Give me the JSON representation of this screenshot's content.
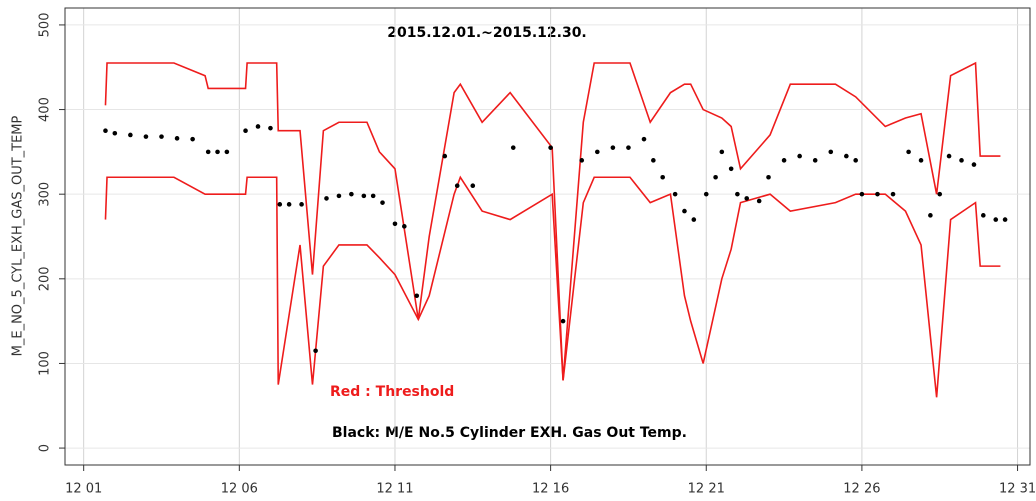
{
  "chart_data": {
    "type": "line",
    "title": "2015.12.01.~2015.12.30.",
    "ylabel": "M_E_NO_5_CYL_EXH_GAS_OUT_TEMP",
    "xlim": [
      0.4,
      31.4
    ],
    "ylim": [
      -20,
      520
    ],
    "xticks": [
      {
        "value": 1,
        "label": "12 01"
      },
      {
        "value": 6,
        "label": "12 06"
      },
      {
        "value": 11,
        "label": "12 11"
      },
      {
        "value": 16,
        "label": "12 16"
      },
      {
        "value": 21,
        "label": "12 21"
      },
      {
        "value": 26,
        "label": "12 26"
      },
      {
        "value": 31,
        "label": "12 31"
      }
    ],
    "yticks": [
      0,
      100,
      200,
      300,
      400,
      500
    ],
    "grid": true,
    "series": [
      {
        "name": "Red : Threshold",
        "color": "#ee1c1c",
        "x": [
          1.7,
          1.75,
          3.9,
          4.9,
          5.0,
          6.2,
          6.25,
          7.2,
          7.25,
          7.95,
          8.35,
          8.7,
          9.2,
          10.1,
          10.5,
          11.0,
          11.75,
          12.1,
          12.9,
          13.1,
          13.8,
          14.7,
          16.05,
          16.4,
          17.05,
          17.4,
          18.55,
          19.2,
          19.85,
          20.3,
          20.5,
          20.9,
          21.5,
          21.8,
          22.1,
          23.05,
          23.7,
          25.15,
          25.8,
          26.75,
          27.4,
          27.9,
          28.4,
          28.85,
          29.65,
          29.8,
          30.45
        ],
        "upper": [
          405,
          455,
          455,
          440,
          425,
          425,
          455,
          455,
          375,
          375,
          205,
          375,
          385,
          385,
          350,
          330,
          152,
          250,
          420,
          430,
          385,
          420,
          355,
          80,
          385,
          455,
          455,
          385,
          420,
          430,
          430,
          400,
          390,
          380,
          330,
          370,
          430,
          430,
          415,
          380,
          390,
          395,
          300,
          440,
          455,
          345,
          345
        ],
        "lower": [
          270,
          320,
          320,
          300,
          300,
          300,
          320,
          320,
          75,
          240,
          75,
          215,
          240,
          240,
          225,
          205,
          152,
          180,
          300,
          320,
          280,
          270,
          300,
          80,
          290,
          320,
          320,
          290,
          300,
          180,
          150,
          100,
          200,
          235,
          290,
          300,
          280,
          290,
          300,
          300,
          280,
          240,
          60,
          270,
          290,
          215,
          215
        ]
      },
      {
        "name": "Black: M/E No.5 Cylinder EXH. Gas Out Temp.",
        "color": "#000000",
        "x": [
          1.7,
          2.0,
          2.5,
          3.0,
          3.5,
          4.0,
          4.5,
          5.0,
          5.3,
          5.6,
          6.2,
          6.6,
          7.0,
          7.3,
          7.6,
          8.0,
          8.45,
          8.8,
          9.2,
          9.6,
          10.0,
          10.3,
          10.6,
          11.0,
          11.3,
          11.7,
          12.6,
          13.0,
          13.5,
          14.8,
          16.0,
          16.4,
          17.0,
          17.5,
          18.0,
          18.5,
          19.0,
          19.3,
          19.6,
          20.0,
          20.3,
          20.6,
          21.0,
          21.3,
          21.5,
          21.8,
          22.0,
          22.3,
          22.7,
          23.0,
          23.5,
          24.0,
          24.5,
          25.0,
          25.5,
          25.8,
          26.0,
          26.5,
          27.0,
          27.5,
          27.9,
          28.2,
          28.5,
          28.8,
          29.2,
          29.6,
          29.9,
          30.3,
          30.6
        ],
        "values": [
          375,
          372,
          370,
          368,
          368,
          366,
          365,
          350,
          350,
          350,
          375,
          380,
          378,
          288,
          288,
          288,
          115,
          295,
          298,
          300,
          298,
          298,
          290,
          265,
          262,
          180,
          345,
          310,
          310,
          355,
          355,
          150,
          340,
          350,
          355,
          355,
          365,
          340,
          320,
          300,
          280,
          270,
          300,
          320,
          350,
          330,
          300,
          295,
          292,
          320,
          340,
          345,
          340,
          350,
          345,
          340,
          300,
          300,
          300,
          350,
          340,
          275,
          300,
          345,
          340,
          335,
          275,
          270,
          270
        ]
      }
    ]
  }
}
